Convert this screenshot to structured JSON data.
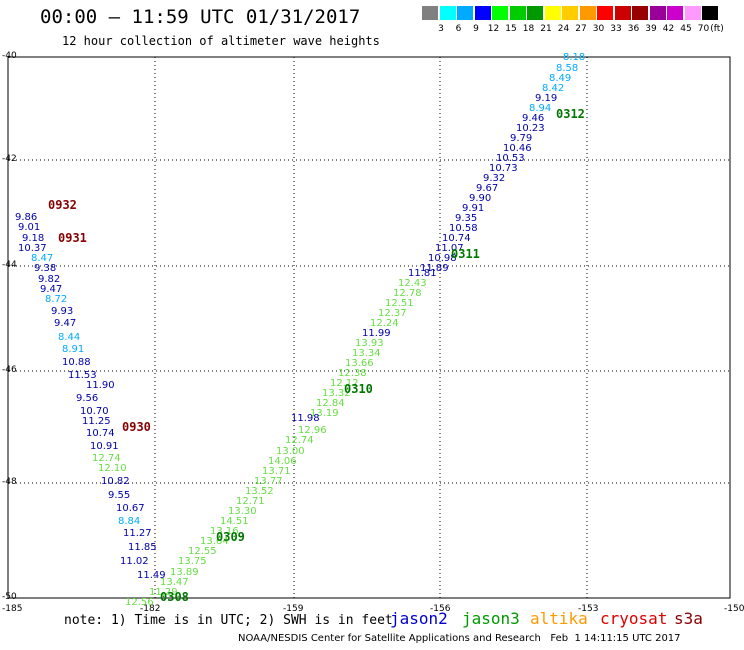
{
  "header": {
    "title": "00:00 – 11:59 UTC 01/31/2017",
    "subtitle": "12 hour collection of altimeter wave heights"
  },
  "legend": {
    "unit": "(ft)",
    "bins": [
      {
        "label": "3",
        "color": "#808080"
      },
      {
        "label": "6",
        "color": "#00ffff"
      },
      {
        "label": "9",
        "color": "#00aaff"
      },
      {
        "label": "12",
        "color": "#0000ff"
      },
      {
        "label": "15",
        "color": "#00ff00"
      },
      {
        "label": "18",
        "color": "#00cc00"
      },
      {
        "label": "21",
        "color": "#009900"
      },
      {
        "label": "24",
        "color": "#ffff00"
      },
      {
        "label": "27",
        "color": "#ffcc00"
      },
      {
        "label": "30",
        "color": "#ff9900"
      },
      {
        "label": "33",
        "color": "#ff0000"
      },
      {
        "label": "36",
        "color": "#cc0000"
      },
      {
        "label": "39",
        "color": "#990000"
      },
      {
        "label": "42",
        "color": "#990099"
      },
      {
        "label": "45",
        "color": "#cc00cc"
      },
      {
        "label": "70",
        "color": "#ff99ff"
      },
      {
        "label": "",
        "color": "#000000"
      }
    ]
  },
  "axes": {
    "lat_labels": [
      "-40",
      "-42",
      "-44",
      "-46",
      "-48",
      "-50"
    ],
    "lon_labels": [
      "-185",
      "-182",
      "-159",
      "-156",
      "-153",
      "-150"
    ]
  },
  "tracks": [
    {
      "label": "8.18",
      "color": "#00aaff"
    },
    {
      "label": "8.58",
      "color": "#00aaff"
    },
    {
      "label": "8.49",
      "color": "#00aaff"
    },
    {
      "label": "8.42",
      "color": "#00aaff"
    },
    {
      "label": "9.19",
      "color": "#0000aa"
    },
    {
      "label": "8.94",
      "color": "#00aaff"
    },
    {
      "label": "9.46",
      "color": "#0000aa"
    },
    {
      "label": "10.23",
      "color": "#0000aa"
    },
    {
      "label": "9.79",
      "color": "#0000aa"
    },
    {
      "label": "10.46",
      "color": "#0000aa"
    },
    {
      "label": "10.53",
      "color": "#0000aa"
    },
    {
      "label": "10.73",
      "color": "#0000aa"
    },
    {
      "label": "9.32",
      "color": "#0000aa"
    },
    {
      "label": "9.67",
      "color": "#0000aa"
    },
    {
      "label": "9.90",
      "color": "#0000aa"
    },
    {
      "label": "9.91",
      "color": "#0000aa"
    },
    {
      "label": "9.35",
      "color": "#0000aa"
    },
    {
      "label": "10.58",
      "color": "#0000aa"
    },
    {
      "label": "10.74",
      "color": "#0000aa"
    },
    {
      "label": "11.07",
      "color": "#0000aa"
    },
    {
      "label": "10.98",
      "color": "#0000aa"
    },
    {
      "label": "11.89",
      "color": "#0000aa"
    },
    {
      "label": "11.81",
      "color": "#0000aa"
    },
    {
      "label": "12.43",
      "color": "#66dd44"
    },
    {
      "label": "12.78",
      "color": "#66dd44"
    },
    {
      "label": "12.51",
      "color": "#66dd44"
    },
    {
      "label": "12.37",
      "color": "#66dd44"
    },
    {
      "label": "12.24",
      "color": "#66dd44"
    },
    {
      "label": "11.99",
      "color": "#0000aa"
    },
    {
      "label": "13.93",
      "color": "#66dd44"
    },
    {
      "label": "13.34",
      "color": "#66dd44"
    },
    {
      "label": "13.66",
      "color": "#66dd44"
    },
    {
      "label": "12.38",
      "color": "#66dd44"
    },
    {
      "label": "12.12",
      "color": "#66dd44"
    },
    {
      "label": "13.32",
      "color": "#66dd44"
    },
    {
      "label": "12.84",
      "color": "#66dd44"
    },
    {
      "label": "13.19",
      "color": "#66dd44"
    },
    {
      "label": "11.98",
      "color": "#0000aa"
    },
    {
      "label": "12.96",
      "color": "#66dd44"
    },
    {
      "label": "12.74",
      "color": "#66dd44"
    },
    {
      "label": "13.00",
      "color": "#66dd44"
    },
    {
      "label": "14.06",
      "color": "#66dd44"
    },
    {
      "label": "13.71",
      "color": "#66dd44"
    },
    {
      "label": "13.77",
      "color": "#66dd44"
    },
    {
      "label": "13.52",
      "color": "#66dd44"
    },
    {
      "label": "12.71",
      "color": "#66dd44"
    },
    {
      "label": "13.30",
      "color": "#66dd44"
    },
    {
      "label": "14.51",
      "color": "#66dd44"
    },
    {
      "label": "13.16",
      "color": "#66dd44"
    },
    {
      "label": "13.64",
      "color": "#66dd44"
    },
    {
      "label": "12.55",
      "color": "#66dd44"
    },
    {
      "label": "13.75",
      "color": "#66dd44"
    },
    {
      "label": "13.89",
      "color": "#66dd44"
    },
    {
      "label": "13.47",
      "color": "#66dd44"
    },
    {
      "label": "11.29",
      "color": "#66dd44"
    },
    {
      "label": "12.56",
      "color": "#66dd44"
    },
    {
      "label": "9.86",
      "color": "#0000aa"
    },
    {
      "label": "9.01",
      "color": "#0000aa"
    },
    {
      "label": "9.18",
      "color": "#0000aa"
    },
    {
      "label": "10.37",
      "color": "#0000aa"
    },
    {
      "label": "8.47",
      "color": "#00aaff"
    },
    {
      "label": "9.38",
      "color": "#0000aa"
    },
    {
      "label": "9.82",
      "color": "#0000aa"
    },
    {
      "label": "9.47",
      "color": "#0000aa"
    },
    {
      "label": "8.72",
      "color": "#00aaff"
    },
    {
      "label": "9.93",
      "color": "#0000aa"
    },
    {
      "label": "9.47",
      "color": "#0000aa"
    },
    {
      "label": "8.44",
      "color": "#00aaff"
    },
    {
      "label": "8.91",
      "color": "#00aaff"
    },
    {
      "label": "10.88",
      "color": "#0000aa"
    },
    {
      "label": "11.53",
      "color": "#0000aa"
    },
    {
      "label": "11.90",
      "color": "#0000aa"
    },
    {
      "label": "9.56",
      "color": "#0000aa"
    },
    {
      "label": "10.70",
      "color": "#0000aa"
    },
    {
      "label": "11.25",
      "color": "#0000aa"
    },
    {
      "label": "10.74",
      "color": "#0000aa"
    },
    {
      "label": "10.91",
      "color": "#0000aa"
    },
    {
      "label": "12.74",
      "color": "#66dd44"
    },
    {
      "label": "12.10",
      "color": "#66dd44"
    },
    {
      "label": "10.82",
      "color": "#0000aa"
    },
    {
      "label": "9.55",
      "color": "#0000aa"
    },
    {
      "label": "10.67",
      "color": "#0000aa"
    },
    {
      "label": "8.84",
      "color": "#00aaff"
    },
    {
      "label": "11.27",
      "color": "#0000aa"
    },
    {
      "label": "11.85",
      "color": "#0000aa"
    },
    {
      "label": "11.02",
      "color": "#0000aa"
    },
    {
      "label": "11.49",
      "color": "#0000aa"
    }
  ],
  "pass_labels": [
    {
      "label": "0312",
      "color": "#007700"
    },
    {
      "label": "0311",
      "color": "#007700"
    },
    {
      "label": "0310",
      "color": "#007700"
    },
    {
      "label": "0309",
      "color": "#007700"
    },
    {
      "label": "0308",
      "color": "#007700"
    },
    {
      "label": "0932",
      "color": "#880000"
    },
    {
      "label": "0931",
      "color": "#880000"
    },
    {
      "label": "0930",
      "color": "#880000"
    }
  ],
  "footer": {
    "note": "note: 1) Time is in UTC; 2) SWH is in feet",
    "missions": [
      {
        "label": "jason2",
        "color": "#0000cc"
      },
      {
        "label": "jason3",
        "color": "#009900"
      },
      {
        "label": "altika",
        "color": "#ff9900"
      },
      {
        "label": "cryosat",
        "color": "#dd0000"
      },
      {
        "label": "s3a",
        "color": "#880000"
      }
    ],
    "credit": "NOAA/NESDIS Center for Satellite Applications and Research   Feb  1 14:11:15 UTC 2017"
  }
}
